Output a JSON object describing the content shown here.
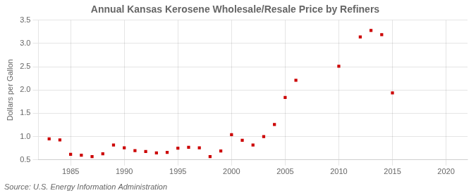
{
  "chart_data": {
    "type": "scatter",
    "title": "Annual Kansas Kerosene Wholesale/Resale Price by Refiners",
    "ylabel": "Dollars per Gallon",
    "annotations": [
      "Source: U.S. Energy Information Administration"
    ],
    "x": [
      1983,
      1984,
      1985,
      1986,
      1987,
      1988,
      1989,
      1990,
      1991,
      1992,
      1993,
      1994,
      1995,
      1996,
      1997,
      1998,
      1999,
      2000,
      2001,
      2002,
      2003,
      2004,
      2005,
      2006,
      2010,
      2012,
      2013,
      2014,
      2015
    ],
    "values": [
      0.95,
      0.93,
      0.62,
      0.6,
      0.57,
      0.63,
      0.82,
      0.76,
      0.7,
      0.68,
      0.65,
      0.66,
      0.75,
      0.77,
      0.76,
      0.57,
      0.69,
      1.04,
      0.92,
      0.82,
      1.0,
      1.26,
      1.84,
      2.21,
      2.51,
      3.14,
      3.28,
      3.19,
      1.94
    ],
    "color": "#cc0000",
    "marker": "square",
    "xlim": [
      1982,
      2022
    ],
    "ylim": [
      0.5,
      3.5
    ],
    "xticks": [
      1985,
      1990,
      1995,
      2000,
      2005,
      2010,
      2015,
      2020
    ],
    "yticks": [
      0.5,
      {
        "value": 1.0,
        "label": "1.0"
      },
      1.5,
      {
        "value": 2.0,
        "label": "2.0"
      },
      2.5,
      {
        "value": 3.0,
        "label": "3.0"
      },
      3.5
    ],
    "grid": true
  }
}
